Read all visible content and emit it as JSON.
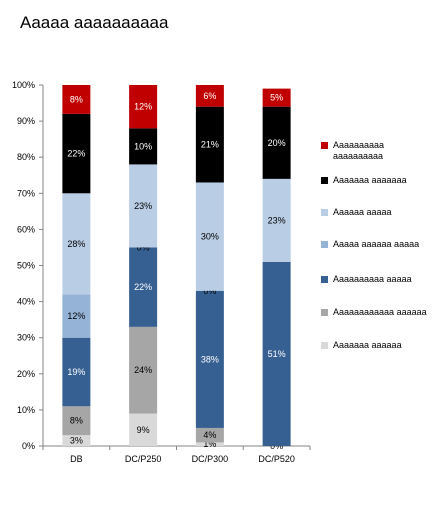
{
  "chart_data": {
    "type": "bar",
    "stacked": true,
    "title": "Aaaaa aaaaaaaaaa",
    "xlabel": "",
    "ylabel": "",
    "ylim": [
      0,
      100
    ],
    "y_ticks": [
      "0%",
      "10%",
      "20%",
      "30%",
      "40%",
      "50%",
      "60%",
      "70%",
      "80%",
      "90%",
      "100%"
    ],
    "categories": [
      "DB",
      "DC/P250",
      "DC/P300",
      "DC/P520"
    ],
    "legend_position": "right",
    "series": [
      {
        "name": "Aaaaaaa aaaaaa",
        "color": "#d9d9d9",
        "text_color": "#000000",
        "values": [
          3,
          9,
          1,
          0
        ],
        "labels": [
          "3%",
          "9%",
          "1%",
          ""
        ]
      },
      {
        "name": "Aaaaaaaaaaaa aaaaaa",
        "color": "#a6a6a6",
        "text_color": "#000000",
        "values": [
          8,
          24,
          4,
          0
        ],
        "labels": [
          "8%",
          "24%",
          "4%",
          "0%"
        ]
      },
      {
        "name": "Aaaaaaaaaa aaaaa",
        "color": "#376092",
        "text_color": "#ffffff",
        "values": [
          19,
          22,
          38,
          51
        ],
        "labels": [
          "19%",
          "22%",
          "38%",
          "51%"
        ]
      },
      {
        "name": "Aaaaa aaaaaa aaaaa",
        "color": "#95b3d7",
        "text_color": "#000000",
        "values": [
          12,
          0,
          0,
          0
        ],
        "labels": [
          "12%",
          "0%",
          "0%",
          ""
        ]
      },
      {
        "name": "Aaaaaa aaaaa",
        "color": "#b9cde5",
        "text_color": "#000000",
        "values": [
          28,
          23,
          30,
          23
        ],
        "labels": [
          "28%",
          "23%",
          "30%",
          "23%"
        ]
      },
      {
        "name": "Aaaaaaa aaaaaaa",
        "color": "#000000",
        "text_color": "#ffffff",
        "values": [
          22,
          10,
          21,
          20
        ],
        "labels": [
          "22%",
          "10%",
          "21%",
          "20%"
        ]
      },
      {
        "name": "Aaaaaaaaaa aaaaaaaaaa",
        "color": "#c00000",
        "text_color": "#ffffff",
        "values": [
          8,
          12,
          6,
          5
        ],
        "labels": [
          "8%",
          "12%",
          "6%",
          "5%"
        ]
      }
    ]
  }
}
